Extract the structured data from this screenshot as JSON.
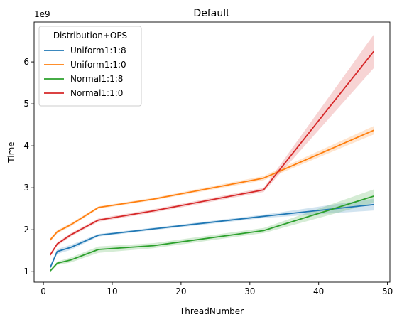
{
  "chart_data": {
    "type": "line",
    "title": "Default",
    "xlabel": "ThreadNumber",
    "ylabel": "Time",
    "y_offset_label": "1e9",
    "xlim": [
      -1.35,
      50.35
    ],
    "ylim": [
      0.75,
      6.95
    ],
    "xticks": [
      0,
      10,
      20,
      30,
      40,
      50
    ],
    "yticks": [
      1,
      2,
      3,
      4,
      5,
      6
    ],
    "grid": false,
    "legend": {
      "title": "Distribution+OPS",
      "placement": "top-left"
    },
    "series": [
      {
        "name": "Uniform1:1:8",
        "color": "#1f77b4",
        "x": [
          1,
          2,
          4,
          8,
          16,
          32,
          48
        ],
        "y": [
          1.1,
          1.48,
          1.58,
          1.87,
          2.02,
          2.32,
          2.6
        ],
        "band": [
          [
            1.06,
            1.14
          ],
          [
            1.42,
            1.54
          ],
          [
            1.52,
            1.64
          ],
          [
            1.84,
            1.9
          ],
          [
            1.99,
            2.05
          ],
          [
            2.28,
            2.36
          ],
          [
            2.46,
            2.74
          ]
        ]
      },
      {
        "name": "Uniform1:1:0",
        "color": "#ff7f0e",
        "x": [
          1,
          2,
          4,
          8,
          16,
          32,
          48
        ],
        "y": [
          1.76,
          1.95,
          2.12,
          2.53,
          2.73,
          3.23,
          4.37
        ],
        "band": [
          [
            1.72,
            1.8
          ],
          [
            1.91,
            1.99
          ],
          [
            2.08,
            2.16
          ],
          [
            2.5,
            2.56
          ],
          [
            2.7,
            2.76
          ],
          [
            3.18,
            3.28
          ],
          [
            4.27,
            4.47
          ]
        ]
      },
      {
        "name": "Normal1:1:8",
        "color": "#2ca02c",
        "x": [
          1,
          2,
          4,
          8,
          16,
          32,
          48
        ],
        "y": [
          1.02,
          1.2,
          1.28,
          1.53,
          1.62,
          1.98,
          2.8
        ],
        "band": [
          [
            0.99,
            1.05
          ],
          [
            1.16,
            1.24
          ],
          [
            1.22,
            1.34
          ],
          [
            1.45,
            1.6
          ],
          [
            1.56,
            1.68
          ],
          [
            1.92,
            2.04
          ],
          [
            2.64,
            2.96
          ]
        ]
      },
      {
        "name": "Normal1:1:0",
        "color": "#d62728",
        "x": [
          1,
          2,
          4,
          8,
          16,
          32,
          48
        ],
        "y": [
          1.4,
          1.66,
          1.88,
          2.23,
          2.45,
          2.95,
          6.25
        ],
        "band": [
          [
            1.36,
            1.44
          ],
          [
            1.62,
            1.7
          ],
          [
            1.84,
            1.92
          ],
          [
            2.19,
            2.27
          ],
          [
            2.41,
            2.49
          ],
          [
            2.9,
            3.0
          ],
          [
            5.85,
            6.65
          ]
        ]
      }
    ]
  }
}
